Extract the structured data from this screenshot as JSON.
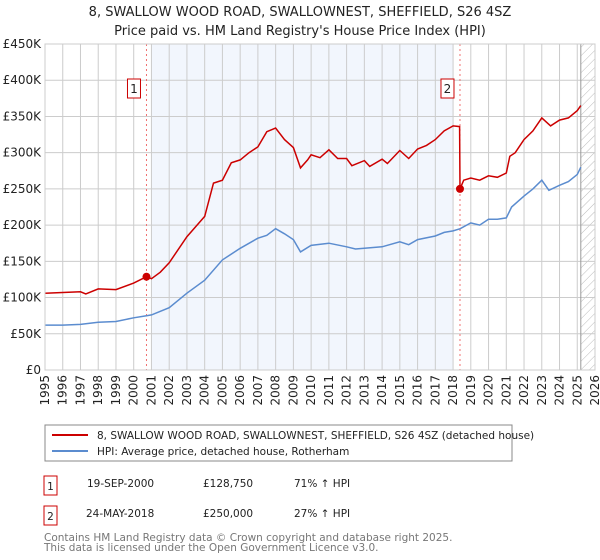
{
  "chart_data": {
    "type": "line",
    "title": "8, SWALLOW WOOD ROAD, SWALLOWNEST, SHEFFIELD, S26 4SZ",
    "subtitle": "Price paid vs. HM Land Registry's House Price Index (HPI)",
    "xlim": [
      1995,
      2026
    ],
    "ylim": [
      0,
      450000
    ],
    "grid": true,
    "y_ticks": [
      0,
      50000,
      100000,
      150000,
      200000,
      250000,
      300000,
      350000,
      400000,
      450000
    ],
    "y_tick_labels": [
      "£0",
      "£50K",
      "£100K",
      "£150K",
      "£200K",
      "£250K",
      "£300K",
      "£350K",
      "£400K",
      "£450K"
    ],
    "x_ticks": [
      1995,
      1996,
      1997,
      1998,
      1999,
      2000,
      2001,
      2002,
      2003,
      2004,
      2005,
      2006,
      2007,
      2008,
      2009,
      2010,
      2011,
      2012,
      2013,
      2014,
      2015,
      2016,
      2017,
      2018,
      2019,
      2020,
      2021,
      2022,
      2023,
      2024,
      2025,
      2026
    ],
    "x_tick_labels": [
      "1995",
      "1996",
      "1997",
      "1998",
      "1999",
      "2000",
      "2001",
      "2002",
      "2003",
      "2004",
      "2005",
      "2006",
      "2007",
      "2008",
      "2009",
      "2010",
      "2011",
      "2012",
      "2013",
      "2014",
      "2015",
      "2016",
      "2017",
      "2018",
      "2019",
      "2020",
      "2021",
      "2022",
      "2023",
      "2024",
      "2025",
      "2026"
    ],
    "shaded_range": [
      2001,
      2018
    ],
    "forecast_hatch_from": 2025.2,
    "series": [
      {
        "name": "8, SWALLOW WOOD ROAD, SWALLOWNEST, SHEFFIELD, S26 4SZ (detached house)",
        "color": "#cc0000",
        "x": [
          1995,
          1996,
          1997,
          1997.3,
          1998,
          1999,
          2000,
          2000.72,
          2001,
          2001.5,
          2002,
          2003,
          2004,
          2004.5,
          2005,
          2005.5,
          2006,
          2006.5,
          2007,
          2007.5,
          2008,
          2008.5,
          2009,
          2009.4,
          2009.8,
          2010,
          2010.5,
          2011,
          2011.5,
          2012,
          2012.3,
          2013,
          2013.3,
          2014,
          2014.3,
          2015,
          2015.5,
          2016,
          2016.5,
          2017,
          2017.5,
          2018,
          2018.37,
          2018.39,
          2018.6,
          2019,
          2019.5,
          2020,
          2020.5,
          2021,
          2021.2,
          2021.5,
          2022,
          2022.5,
          2023,
          2023.5,
          2024,
          2024.5,
          2025,
          2025.2
        ],
        "y": [
          106000,
          107000,
          108000,
          105000,
          112000,
          111000,
          120000,
          128750,
          126000,
          135000,
          148000,
          184000,
          212000,
          258000,
          262000,
          286000,
          290000,
          300000,
          308000,
          329000,
          334000,
          318000,
          307000,
          279000,
          290000,
          297000,
          293000,
          304000,
          292000,
          292000,
          282000,
          289000,
          281000,
          291000,
          285000,
          303000,
          292000,
          305000,
          310000,
          318000,
          330000,
          337000,
          336000,
          250000,
          262000,
          265000,
          262000,
          268000,
          266000,
          272000,
          295000,
          300000,
          318000,
          330000,
          348000,
          337000,
          345000,
          348000,
          358000,
          365000
        ]
      },
      {
        "name": "HPI: Average price, detached house, Rotherham",
        "color": "#5b8ccf",
        "x": [
          1995,
          1996,
          1997,
          1998,
          1999,
          2000,
          2000.72,
          2001,
          2002,
          2003,
          2004,
          2005,
          2006,
          2007,
          2007.5,
          2008,
          2008.5,
          2009,
          2009.4,
          2010,
          2011,
          2012,
          2012.5,
          2013,
          2014,
          2015,
          2015.5,
          2016,
          2017,
          2017.5,
          2018,
          2018.4,
          2019,
          2019.5,
          2020,
          2020.5,
          2021,
          2021.3,
          2022,
          2022.5,
          2023,
          2023.4,
          2024,
          2024.5,
          2025,
          2025.2
        ],
        "y": [
          62000,
          62000,
          63000,
          66000,
          67000,
          72000,
          75000,
          76000,
          86000,
          106000,
          124000,
          152000,
          168000,
          182000,
          186000,
          195000,
          188000,
          180000,
          163000,
          172000,
          175000,
          170000,
          167000,
          168000,
          170000,
          177000,
          173000,
          180000,
          185000,
          190000,
          192000,
          195000,
          203000,
          200000,
          208000,
          208000,
          210000,
          225000,
          240000,
          250000,
          262000,
          248000,
          255000,
          260000,
          270000,
          280000
        ]
      }
    ],
    "annotations": [
      {
        "label": "1",
        "x": 2000.72,
        "y": 128750
      },
      {
        "label": "2",
        "x": 2018.39,
        "y": 250000
      }
    ]
  },
  "legend": [
    {
      "label": "8, SWALLOW WOOD ROAD, SWALLOWNEST, SHEFFIELD, S26 4SZ (detached house)",
      "color": "#cc0000"
    },
    {
      "label": "HPI: Average price, detached house, Rotherham",
      "color": "#5b8ccf"
    }
  ],
  "transactions": [
    {
      "num": "1",
      "date": "19-SEP-2000",
      "price": "£128,750",
      "hpi": "71% ↑ HPI"
    },
    {
      "num": "2",
      "date": "24-MAY-2018",
      "price": "£250,000",
      "hpi": "27% ↑ HPI"
    }
  ],
  "footer": [
    "Contains HM Land Registry data © Crown copyright and database right 2025.",
    "This data is licensed under the Open Government Licence v3.0."
  ]
}
